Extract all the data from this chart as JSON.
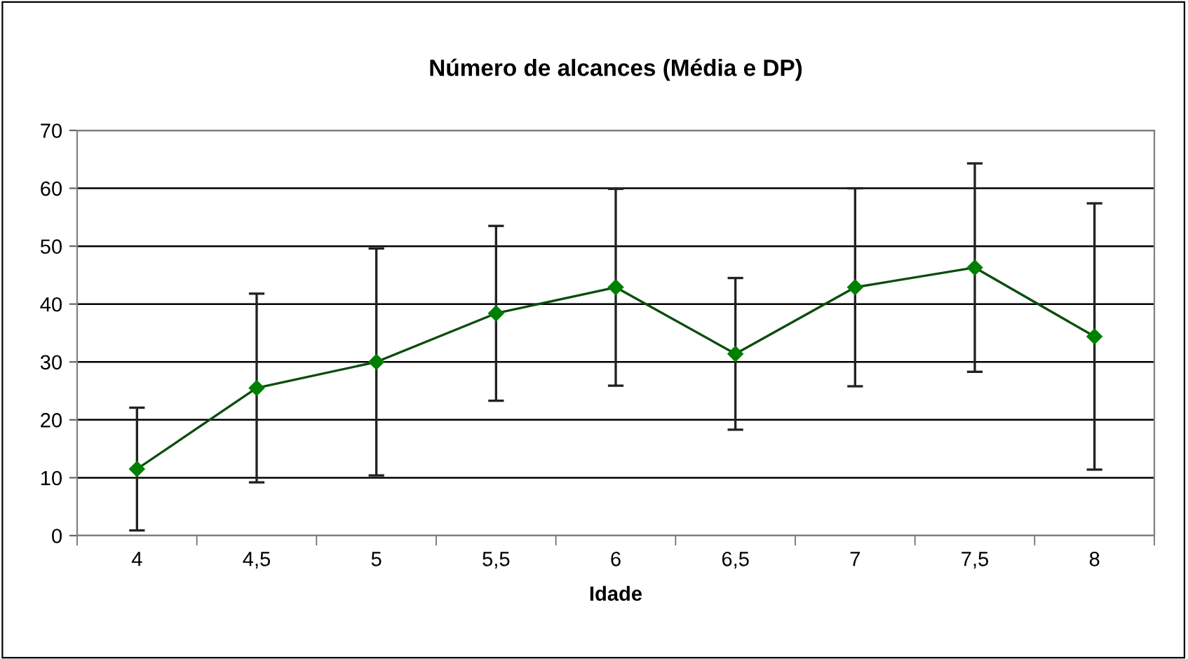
{
  "chart_data": {
    "type": "line",
    "title": "Número de alcances (Média e DP)",
    "xlabel": "Idade",
    "categories": [
      "4",
      "4,5",
      "5",
      "5,5",
      "6",
      "6,5",
      "7",
      "7,5",
      "8"
    ],
    "series": [
      {
        "color": "#008000",
        "values": [
          11.5,
          25.5,
          30.0,
          38.4,
          42.9,
          31.4,
          42.9,
          46.3,
          34.4
        ],
        "errors": [
          10.6,
          16.3,
          19.6,
          15.1,
          17.0,
          13.1,
          17.1,
          18.0,
          23.0
        ]
      }
    ],
    "ylim": [
      0,
      70
    ],
    "yticks": [
      0,
      10,
      20,
      30,
      40,
      50,
      60,
      70
    ],
    "grid": "y",
    "marker": "diamond",
    "line_style": "solid"
  }
}
